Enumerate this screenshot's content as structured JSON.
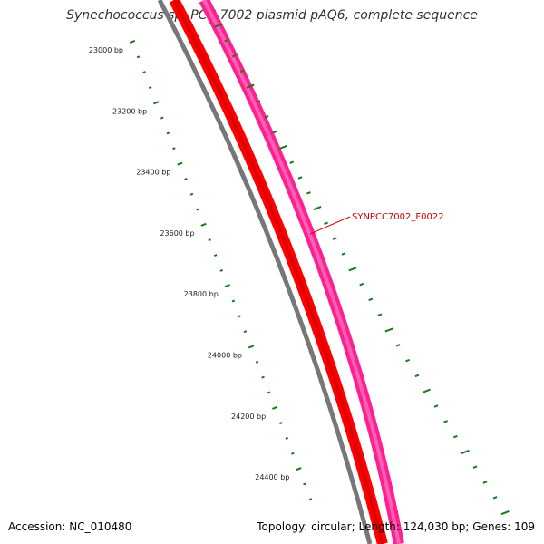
{
  "title": "Synechococcus sp. PCC 7002 plasmid pAQ6, complete sequence",
  "footer": {
    "accession_label": "Accession:",
    "accession": "NC_010480",
    "topology_label": "Topology:",
    "topology": "circular",
    "length_label": "Length:",
    "length": "124,030 bp",
    "genes_label": "Genes:",
    "genes": "109"
  },
  "ruler": {
    "unit": "bp",
    "labels": [
      "23000 bp",
      "23200 bp",
      "23400 bp",
      "23600 bp",
      "23800 bp",
      "24000 bp",
      "24200 bp",
      "24400 bp"
    ],
    "color": "#1a7a1a"
  },
  "gene_label": {
    "text": "SYNPCC7002_F0022",
    "color": "#cc0000"
  },
  "tracks": {
    "backbone_color": "#777777",
    "forward_color": "#ff0000",
    "reverse_color": "#ff2090"
  }
}
